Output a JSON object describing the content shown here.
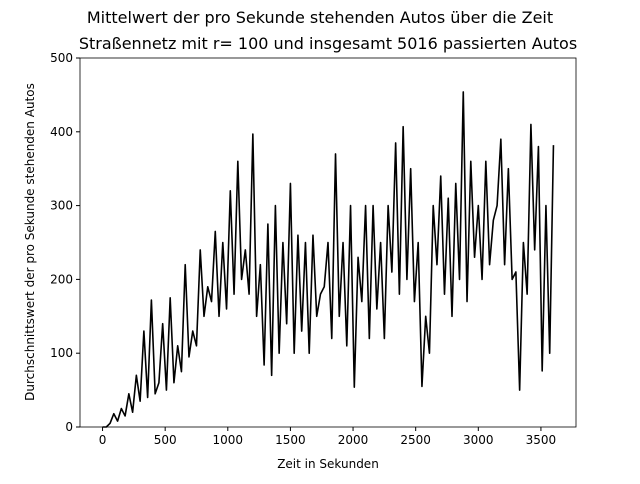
{
  "chart_data": {
    "type": "line",
    "title": "Mittelwert der pro Sekunde stehenden Autos über die Zeit",
    "subtitle": "Straßennetz mit r= 100 und insgesamt 5016 passierten Autos",
    "x_label": "Zeit in Sekunden",
    "y_label": "Durchschnittswert der pro Sekunde stehenden Autos",
    "x": [
      0,
      30,
      60,
      90,
      120,
      150,
      180,
      210,
      240,
      270,
      300,
      330,
      360,
      390,
      420,
      450,
      480,
      510,
      540,
      570,
      600,
      630,
      660,
      690,
      720,
      750,
      780,
      810,
      840,
      870,
      900,
      930,
      960,
      990,
      1020,
      1050,
      1080,
      1110,
      1140,
      1170,
      1200,
      1230,
      1260,
      1290,
      1320,
      1350,
      1380,
      1410,
      1440,
      1470,
      1500,
      1530,
      1560,
      1590,
      1620,
      1650,
      1680,
      1710,
      1740,
      1770,
      1800,
      1830,
      1860,
      1890,
      1920,
      1950,
      1980,
      2010,
      2040,
      2070,
      2100,
      2130,
      2160,
      2190,
      2220,
      2250,
      2280,
      2310,
      2340,
      2370,
      2400,
      2430,
      2460,
      2490,
      2520,
      2550,
      2580,
      2610,
      2640,
      2670,
      2700,
      2730,
      2760,
      2790,
      2820,
      2850,
      2880,
      2910,
      2940,
      2970,
      3000,
      3030,
      3060,
      3090,
      3120,
      3150,
      3180,
      3210,
      3240,
      3270,
      3300,
      3330,
      3360,
      3390,
      3420,
      3450,
      3480,
      3510,
      3540,
      3570,
      3600
    ],
    "series": [
      {
        "name": "Mittelwert",
        "color": "#000000",
        "values": [
          0,
          0,
          5,
          18,
          8,
          25,
          15,
          45,
          20,
          70,
          35,
          130,
          40,
          172,
          45,
          60,
          140,
          50,
          175,
          60,
          110,
          75,
          220,
          95,
          130,
          110,
          240,
          150,
          190,
          170,
          265,
          150,
          250,
          160,
          320,
          180,
          360,
          200,
          240,
          180,
          397,
          150,
          220,
          84,
          275,
          70,
          300,
          100,
          250,
          140,
          330,
          100,
          260,
          130,
          250,
          100,
          260,
          150,
          180,
          190,
          250,
          120,
          370,
          150,
          250,
          110,
          300,
          54,
          230,
          170,
          300,
          120,
          300,
          160,
          250,
          120,
          300,
          210,
          385,
          180,
          407,
          200,
          350,
          170,
          250,
          55,
          150,
          100,
          300,
          220,
          340,
          180,
          310,
          150,
          330,
          200,
          454,
          170,
          360,
          230,
          300,
          200,
          360,
          220,
          280,
          300,
          390,
          220,
          350,
          200,
          210,
          50,
          250,
          180,
          410,
          240,
          380,
          76,
          300,
          100,
          382
        ]
      }
    ],
    "xlim": [
      -180,
      3780
    ],
    "ylim": [
      0,
      500
    ],
    "xticks": [
      0,
      500,
      1000,
      1500,
      2000,
      2500,
      3000,
      3500
    ],
    "yticks": [
      0,
      100,
      200,
      300,
      400,
      500
    ]
  }
}
